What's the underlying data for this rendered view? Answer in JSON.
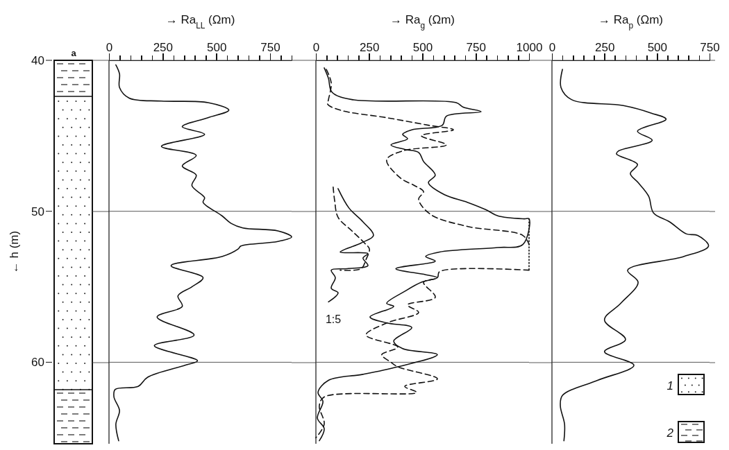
{
  "chart_data": [
    {
      "type": "line",
      "xlabel": "→ Ra$_{LL}$ (Ωm)",
      "ylabel": "← h (m)",
      "annotations": [
        "a"
      ],
      "xlim": [
        0,
        850
      ],
      "ylim": [
        65.4,
        40
      ],
      "yticks": [
        40,
        50,
        60
      ],
      "grid": "y",
      "xticks": [
        0,
        {
          "value": 50,
          "label": null
        },
        {
          "value": 100,
          "label": null
        },
        {
          "value": 150,
          "label": null
        },
        {
          "value": 200,
          "label": null
        },
        250,
        {
          "value": 300,
          "label": null
        },
        {
          "value": 350,
          "label": null
        },
        {
          "value": 400,
          "label": null
        },
        {
          "value": 450,
          "label": null
        },
        500,
        {
          "value": 550,
          "label": null
        },
        {
          "value": 600,
          "label": null
        },
        {
          "value": 650,
          "label": null
        },
        {
          "value": 700,
          "label": null
        },
        750,
        {
          "value": 800,
          "label": null
        },
        {
          "value": 850,
          "label": null
        }
      ],
      "series": [
        {
          "color": "#111111",
          "line_style": "solid",
          "x": [
            32,
            49,
            49,
            94,
            244,
            461,
            558,
            461,
            341,
            445,
            244,
            406,
            341,
            406,
            386,
            445,
            438,
            526,
            568,
            623,
            786,
            850,
            786,
            614,
            601,
            526,
            289,
            438,
            386,
            321,
            341,
            224,
            396,
            211,
            412,
            354,
            179,
            136,
            29,
            23,
            49,
            32,
            45
          ],
          "values": [
            40.3,
            40.9,
            41.8,
            42.5,
            42.7,
            42.8,
            43.3,
            43.8,
            44.4,
            44.9,
            45.7,
            46.3,
            47.0,
            47.6,
            48.3,
            49.1,
            49.4,
            50.3,
            50.8,
            51.1,
            51.3,
            51.7,
            52.0,
            52.3,
            52.5,
            53.0,
            53.6,
            54.4,
            55.0,
            55.6,
            56.3,
            57.0,
            58.2,
            58.9,
            59.9,
            60.2,
            61.0,
            61.6,
            61.8,
            62.3,
            63.2,
            64.1,
            65.2
          ]
        }
      ]
    },
    {
      "type": "line",
      "xlabel": "→ Ra$_{g}$ (Ωm)",
      "annotations": [
        "1:5"
      ],
      "xlim": [
        0,
        1000
      ],
      "ylim": [
        65.4,
        40
      ],
      "yticks": [
        40,
        50,
        60
      ],
      "grid": "y",
      "tick_labels": "x",
      "xticks": [
        0,
        {
          "value": 50,
          "label": null
        },
        {
          "value": 100,
          "label": null
        },
        {
          "value": 150,
          "label": null
        },
        {
          "value": 200,
          "label": null
        },
        250,
        {
          "value": 300,
          "label": null
        },
        {
          "value": 350,
          "label": null
        },
        {
          "value": 400,
          "label": null
        },
        {
          "value": 450,
          "label": null
        },
        500,
        {
          "value": 550,
          "label": null
        },
        {
          "value": 600,
          "label": null
        },
        {
          "value": 650,
          "label": null
        },
        {
          "value": 700,
          "label": null
        },
        750,
        {
          "value": 800,
          "label": null
        },
        {
          "value": 850,
          "label": null
        },
        {
          "value": 900,
          "label": null
        },
        {
          "value": 950,
          "label": null
        },
        1000
      ],
      "series": [
        {
          "color": "#111111",
          "line_style": "solid",
          "x": [
            39,
            59,
            75,
            169,
            658,
            691,
            775,
            612,
            593,
            450,
            407,
            430,
            352,
            417,
            482,
            505,
            560,
            528,
            603,
            710,
            798,
            853,
            977,
            1000,
            971,
            853,
            580,
            515,
            560,
            375,
            515,
            570,
            495,
            417,
            332,
            365,
            254,
            332,
            450,
            365,
            407,
            570,
            384,
            221,
            59,
            10,
            33,
            7,
            39,
            16
          ],
          "values": [
            40.5,
            41.2,
            42.1,
            42.6,
            42.8,
            43.1,
            43.4,
            43.7,
            44.3,
            44.6,
            44.9,
            45.2,
            45.6,
            45.9,
            46.1,
            46.7,
            47.6,
            48.1,
            48.9,
            49.4,
            49.9,
            50.3,
            50.5,
            50.5,
            52.2,
            52.4,
            52.7,
            53.0,
            53.3,
            53.8,
            54.2,
            54.4,
            54.7,
            55.3,
            56.1,
            56.3,
            57.0,
            57.4,
            57.7,
            58.6,
            59.1,
            59.5,
            60.3,
            60.8,
            61.2,
            62.0,
            62.6,
            63.7,
            64.4,
            65.2
          ]
        },
        {
          "color": "#111111",
          "line_style": "dashed",
          "x": [
            49,
            72,
            59,
            55,
            114,
            332,
            528,
            645,
            495,
            612,
            407,
            332,
            397,
            463,
            505,
            482,
            537,
            710,
            971,
            1000
          ],
          "values": [
            40.6,
            41.5,
            42.6,
            42.9,
            43.3,
            43.8,
            44.3,
            44.6,
            45.0,
            45.6,
            46.0,
            46.6,
            47.8,
            48.3,
            48.7,
            49.2,
            50.2,
            51.0,
            51.6,
            52.2
          ]
        },
        {
          "color": "#111111",
          "line_style": "dotted",
          "x": [
            1000,
            1000
          ],
          "values": [
            50.5,
            53.9
          ]
        },
        {
          "color": "#111111",
          "line_style": "dashed",
          "x": [
            1000,
            580,
            570,
            505,
            560,
            430,
            482,
            332,
            235,
            384,
            309,
            352,
            384,
            570,
            417,
            472,
            39,
            16,
            39,
            0
          ],
          "values": [
            53.9,
            54.0,
            54.4,
            54.7,
            55.7,
            56.2,
            56.7,
            57.4,
            58.2,
            59.0,
            59.5,
            60.0,
            60.3,
            61.1,
            61.6,
            62.0,
            62.3,
            62.9,
            64.1,
            65.0
          ]
        },
        {
          "color": "#111111",
          "line_style": "solid",
          "x": [
            104,
            156,
            221,
            270,
            212,
            114,
            244,
            221,
            244,
            147,
            72,
            91,
            72,
            104,
            59
          ],
          "values": [
            48.5,
            49.8,
            50.7,
            51.6,
            52.1,
            52.7,
            52.8,
            53.1,
            53.6,
            53.8,
            53.9,
            54.4,
            55.1,
            55.4,
            56.0
          ]
        },
        {
          "color": "#111111",
          "line_style": "dashed",
          "x": [
            81,
            88,
            104,
            169,
            228,
            251,
            235,
            212,
            114
          ],
          "values": [
            48.4,
            49.3,
            50.4,
            51.3,
            52.1,
            52.5,
            53.2,
            53.8,
            53.9
          ]
        }
      ]
    },
    {
      "type": "line",
      "xlabel": "→ Ra$_{p}$ (Ωm)",
      "annotations": [
        "1",
        "2"
      ],
      "xlim": [
        0,
        750
      ],
      "ylim": [
        65.4,
        40
      ],
      "yticks": [
        40,
        50,
        60
      ],
      "grid": "y",
      "tick_labels": "x",
      "xticks": [
        0,
        {
          "value": 50,
          "label": null
        },
        {
          "value": 100,
          "label": null
        },
        {
          "value": 150,
          "label": null
        },
        {
          "value": 200,
          "label": null
        },
        250,
        {
          "value": 300,
          "label": null
        },
        {
          "value": 350,
          "label": null
        },
        {
          "value": 400,
          "label": null
        },
        {
          "value": 450,
          "label": null
        },
        500,
        {
          "value": 550,
          "label": null
        },
        {
          "value": 600,
          "label": null
        },
        {
          "value": 650,
          "label": null
        },
        {
          "value": 700,
          "label": null
        },
        750
      ],
      "series": [
        {
          "color": "#111111",
          "line_style": "solid",
          "x": [
            50,
            43,
            93,
            340,
            473,
            543,
            407,
            477,
            317,
            307,
            407,
            373,
            410,
            460,
            483,
            560,
            640,
            693,
            745,
            627,
            360,
            410,
            327,
            250,
            350,
            250,
            390,
            217,
            50,
            40,
            60,
            57
          ],
          "values": [
            40.6,
            41.8,
            42.6,
            43.0,
            43.5,
            43.9,
            44.7,
            45.3,
            46.0,
            46.2,
            46.9,
            47.5,
            48.1,
            49.0,
            50.1,
            50.7,
            51.5,
            51.6,
            52.3,
            53.0,
            53.9,
            54.7,
            56.1,
            57.2,
            58.5,
            59.3,
            60.2,
            61.2,
            62.2,
            62.9,
            64.1,
            65.2
          ]
        }
      ]
    }
  ]
}
